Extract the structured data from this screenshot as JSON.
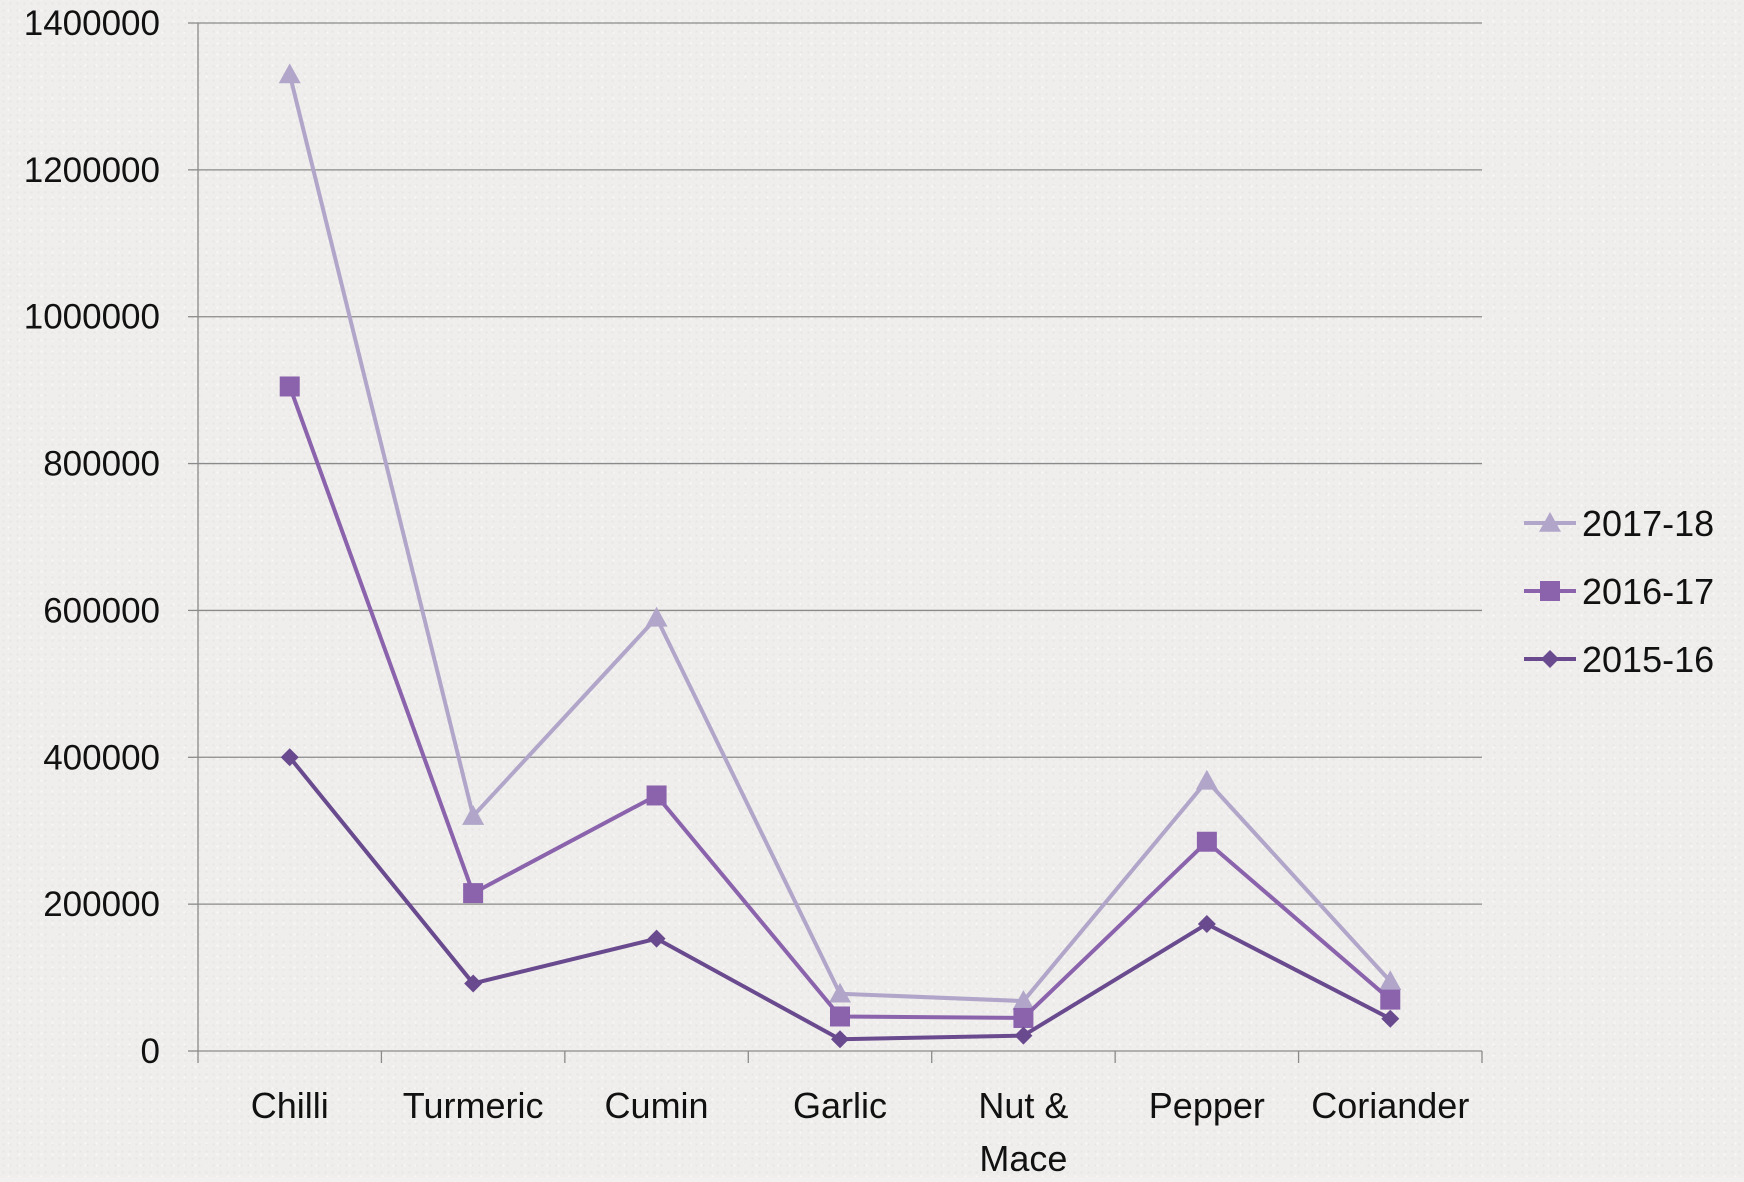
{
  "chart_data": {
    "type": "line",
    "categories": [
      "Chilli",
      "Turmeric",
      "Cumin",
      "Garlic",
      "Nut & Mace",
      "Pepper",
      "Coriander"
    ],
    "category_lines": [
      [
        "Chilli"
      ],
      [
        "Turmeric"
      ],
      [
        "Cumin"
      ],
      [
        "Garlic"
      ],
      [
        "Nut &",
        "Mace"
      ],
      [
        "Pepper"
      ],
      [
        "Coriander"
      ]
    ],
    "series": [
      {
        "name": "2017-18",
        "marker": "triangle",
        "color": "#b1a6c9",
        "values": [
          1330000,
          320000,
          590000,
          78000,
          68000,
          368000,
          95000
        ]
      },
      {
        "name": "2016-17",
        "marker": "square",
        "color": "#8a63ac",
        "values": [
          905000,
          215000,
          348000,
          47000,
          45000,
          285000,
          70000
        ]
      },
      {
        "name": "2015-16",
        "marker": "diamond",
        "color": "#6a4a8e",
        "values": [
          400000,
          92000,
          153000,
          16000,
          21000,
          173000,
          44000
        ]
      }
    ],
    "ylim": [
      0,
      1400000
    ],
    "yticks": [
      "0",
      "200000",
      "400000",
      "600000",
      "800000",
      "1000000",
      "1200000",
      "1400000"
    ],
    "title": "",
    "xlabel": "",
    "ylabel": "",
    "grid": true,
    "legend_position": "right"
  }
}
